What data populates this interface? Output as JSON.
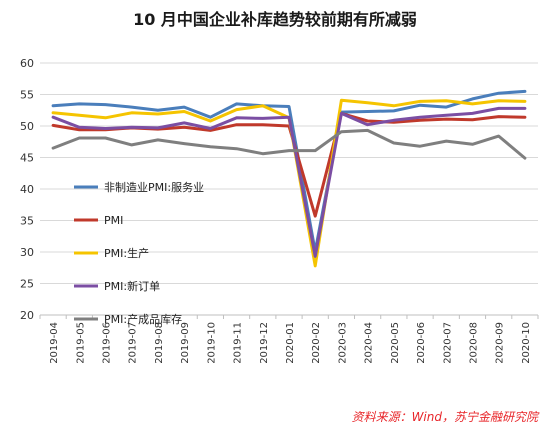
{
  "source": "资料来源：Wind，苏宁金融研究院",
  "chart_data": {
    "type": "line",
    "title": "10 月中国企业补库趋势较前期有所减弱",
    "xlabel": "",
    "ylabel": "",
    "ylim": [
      20,
      60
    ],
    "yticks": [
      20,
      25,
      30,
      35,
      40,
      45,
      50,
      55,
      60
    ],
    "grid": true,
    "legend_position": "inside-left",
    "categories": [
      "2019-04",
      "2019-05",
      "2019-06",
      "2019-07",
      "2019-08",
      "2019-09",
      "2019-10",
      "2019-11",
      "2019-12",
      "2020-01",
      "2020-02",
      "2020-03",
      "2020-04",
      "2020-05",
      "2020-06",
      "2020-07",
      "2020-08",
      "2020-09",
      "2020-10"
    ],
    "series": [
      {
        "name": "非制造业PMI:服务业",
        "color": "#4a7ebb",
        "values": [
          53.2,
          53.5,
          53.4,
          53.0,
          52.5,
          53.0,
          51.4,
          53.5,
          53.2,
          53.1,
          30.1,
          52.2,
          52.3,
          52.4,
          53.3,
          53.0,
          54.3,
          55.2,
          55.5
        ]
      },
      {
        "name": "PMI",
        "color": "#c0392b",
        "values": [
          50.1,
          49.4,
          49.4,
          49.7,
          49.5,
          49.8,
          49.3,
          50.2,
          50.2,
          50.0,
          35.7,
          52.0,
          50.8,
          50.6,
          50.9,
          51.1,
          51.0,
          51.5,
          51.4
        ]
      },
      {
        "name": "PMI:生产",
        "color": "#f5c400",
        "values": [
          52.1,
          51.7,
          51.3,
          52.1,
          51.9,
          52.3,
          50.8,
          52.6,
          53.2,
          51.3,
          27.8,
          54.1,
          53.7,
          53.2,
          53.9,
          54.0,
          53.5,
          54.0,
          53.9
        ]
      },
      {
        "name": "PMI:新订单",
        "color": "#7b4ea3",
        "values": [
          51.4,
          49.8,
          49.6,
          49.8,
          49.7,
          50.5,
          49.6,
          51.3,
          51.2,
          51.4,
          29.3,
          52.0,
          50.2,
          50.9,
          51.4,
          51.7,
          52.0,
          52.8,
          52.8
        ]
      },
      {
        "name": "PMI:产成品库存",
        "color": "#7f7f7f",
        "values": [
          46.5,
          48.1,
          48.1,
          47.0,
          47.8,
          47.2,
          46.7,
          46.4,
          45.6,
          46.1,
          46.1,
          49.1,
          49.3,
          47.3,
          46.8,
          47.6,
          47.1,
          48.4,
          44.9
        ]
      }
    ]
  }
}
